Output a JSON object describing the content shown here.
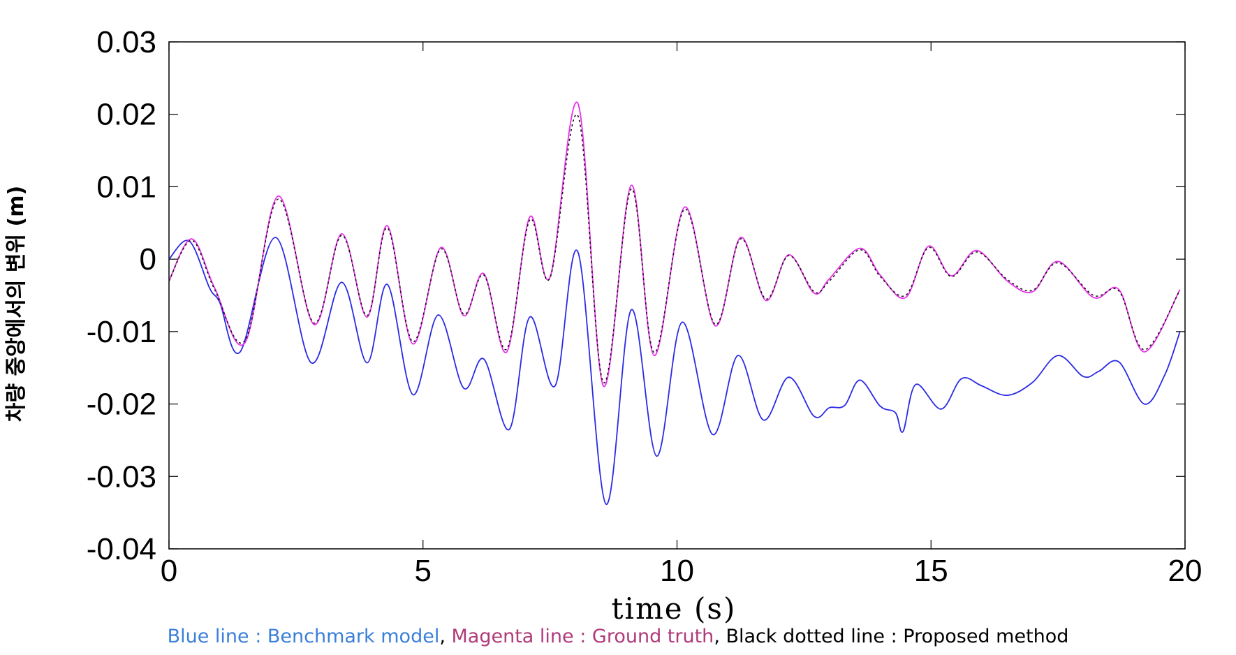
{
  "chart_data": {
    "type": "line",
    "ylabel": "차량 중앙에서의 변위 (m)",
    "xlabel": "time (s)",
    "xlim": [
      0,
      20
    ],
    "ylim": [
      -0.04,
      0.03
    ],
    "xticks": [
      "0",
      "5",
      "10",
      "15",
      "20"
    ],
    "yticks": [
      "0.03",
      "0.02",
      "0.01",
      "0",
      "-0.01",
      "-0.02",
      "-0.03",
      "-0.04"
    ],
    "grid": false,
    "series": [
      {
        "key": "benchmark",
        "color": "#2a2ae6",
        "dash": "",
        "x": [
          0,
          0.4,
          0.8,
          1.0,
          1.4,
          2.1,
          2.8,
          3.4,
          3.9,
          4.3,
          4.8,
          5.3,
          5.8,
          6.2,
          6.7,
          7.1,
          7.6,
          8.05,
          8.6,
          9.1,
          9.6,
          10.1,
          10.7,
          11.2,
          11.7,
          12.2,
          12.7,
          13.0,
          13.3,
          13.6,
          14.0,
          14.3,
          14.45,
          14.7,
          15.2,
          15.6,
          16.0,
          16.5,
          17.0,
          17.5,
          18.0,
          18.3,
          18.7,
          19.2,
          19.6,
          19.9
        ],
        "y": [
          0,
          0.0025,
          -0.004,
          -0.006,
          -0.0128,
          0.003,
          -0.0143,
          -0.0032,
          -0.0143,
          -0.0035,
          -0.0187,
          -0.0077,
          -0.0178,
          -0.0138,
          -0.0235,
          -0.008,
          -0.0175,
          0.001,
          -0.0338,
          -0.007,
          -0.0272,
          -0.0087,
          -0.0242,
          -0.0133,
          -0.0222,
          -0.0163,
          -0.0217,
          -0.0205,
          -0.0202,
          -0.0167,
          -0.0203,
          -0.0212,
          -0.0238,
          -0.0173,
          -0.0207,
          -0.0165,
          -0.0175,
          -0.0188,
          -0.017,
          -0.0133,
          -0.0162,
          -0.0155,
          -0.0142,
          -0.02,
          -0.016,
          -0.01
        ]
      },
      {
        "key": "ground_truth",
        "color": "#e830e8",
        "dash": "",
        "x": [
          0,
          0.45,
          0.9,
          1.5,
          2.15,
          2.85,
          3.4,
          3.9,
          4.3,
          4.8,
          5.35,
          5.8,
          6.2,
          6.65,
          7.1,
          7.5,
          8.05,
          8.55,
          9.1,
          9.55,
          10.15,
          10.75,
          11.25,
          11.75,
          12.2,
          12.7,
          13.0,
          13.6,
          14.0,
          14.5,
          14.95,
          15.4,
          15.9,
          16.5,
          17.0,
          17.5,
          18.2,
          18.7,
          19.2,
          19.9
        ],
        "y": [
          -0.003,
          0.0028,
          -0.004,
          -0.0115,
          0.0087,
          -0.009,
          0.0035,
          -0.008,
          0.0046,
          -0.0117,
          0.0016,
          -0.0078,
          -0.002,
          -0.0128,
          0.0058,
          -0.0025,
          0.0215,
          -0.0175,
          0.0102,
          -0.0133,
          0.0072,
          -0.0092,
          0.003,
          -0.0057,
          0.0006,
          -0.0047,
          -0.0027,
          0.0015,
          -0.0022,
          -0.0053,
          0.0018,
          -0.0023,
          0.0012,
          -0.003,
          -0.0045,
          -0.0003,
          -0.0053,
          -0.0042,
          -0.0128,
          -0.0042
        ]
      },
      {
        "key": "proposed",
        "color": "#111111",
        "dash": "3,4",
        "x": [
          0,
          0.45,
          0.9,
          1.5,
          2.15,
          2.85,
          3.4,
          3.9,
          4.3,
          4.8,
          5.35,
          5.8,
          6.2,
          6.65,
          7.1,
          7.5,
          8.05,
          8.55,
          9.1,
          9.55,
          10.15,
          10.75,
          11.25,
          11.75,
          12.2,
          12.7,
          13.0,
          13.6,
          14.0,
          14.5,
          14.95,
          15.4,
          15.9,
          16.5,
          17.0,
          17.5,
          18.2,
          18.7,
          19.2,
          19.9
        ],
        "y": [
          -0.003,
          0.0026,
          -0.0042,
          -0.0112,
          0.0083,
          -0.0088,
          0.0033,
          -0.0078,
          0.0043,
          -0.0114,
          0.0014,
          -0.0076,
          -0.0022,
          -0.0124,
          0.0054,
          -0.0026,
          0.0198,
          -0.017,
          0.0097,
          -0.0129,
          0.0069,
          -0.009,
          0.0028,
          -0.0055,
          0.0005,
          -0.0045,
          -0.003,
          0.0013,
          -0.0024,
          -0.005,
          0.0016,
          -0.0024,
          0.001,
          -0.0028,
          -0.0043,
          -0.0005,
          -0.005,
          -0.0044,
          -0.0125,
          -0.0043
        ]
      }
    ],
    "caption": [
      {
        "text": "Blue line : Benchmark model",
        "color": "#3a7fd8"
      },
      {
        "text": ", ",
        "color": "#000000"
      },
      {
        "text": "Magenta line : Ground truth",
        "color": "#b03a7a"
      },
      {
        "text": ", Black dotted line : Proposed method",
        "color": "#000000"
      }
    ]
  }
}
